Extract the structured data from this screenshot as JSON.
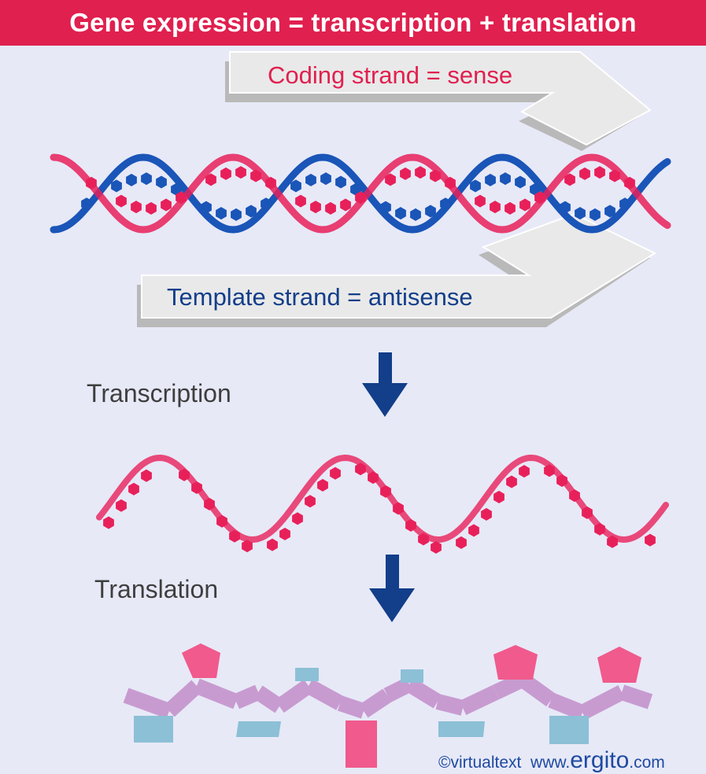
{
  "title": "Gene expression = transcription + translation",
  "dna": {
    "coding_label": "Coding strand = sense",
    "template_label": "Template strand = antisense"
  },
  "steps": {
    "transcription": "Transcription",
    "translation": "Translation"
  },
  "credit": {
    "copyright": "©virtualtext",
    "url_prefix": "www.",
    "url_brand": "ergito",
    "url_suffix": ".com"
  },
  "colors": {
    "banner": "#e0204f",
    "sense_strand": "#e8205a",
    "antisense_strand": "#1a55b8",
    "arrow": "#123e8a",
    "amino_backbone": "#c89bd0",
    "side_chain_pink": "#f05a8c",
    "side_chain_blue": "#8cc0d6"
  }
}
